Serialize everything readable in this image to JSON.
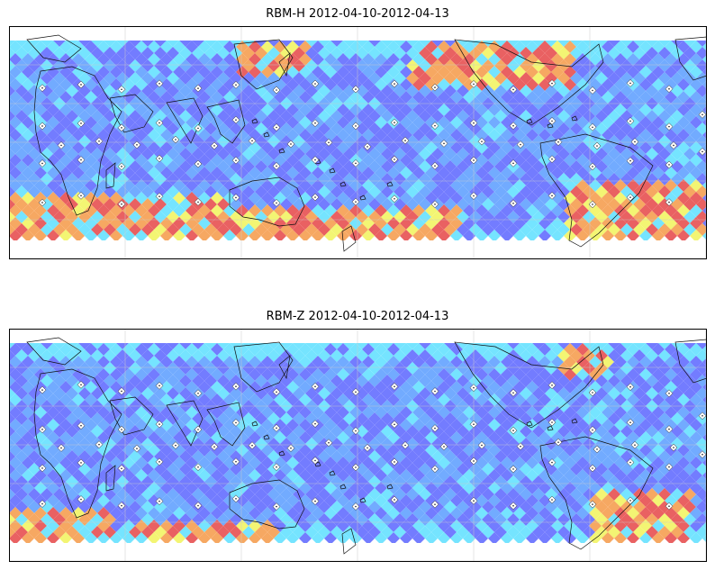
{
  "panels": [
    {
      "title": "RBM-H 2012-04-10-2012-04-13",
      "hot_zones": [
        {
          "col": 0.33,
          "row": 0.02,
          "w": 0.1,
          "h": 0.05
        },
        {
          "col": 0.57,
          "row": 0.02,
          "w": 0.24,
          "h": 0.07
        },
        {
          "col": 0.7,
          "row": 0.08,
          "w": 0.08,
          "h": 0.04
        },
        {
          "col": 0.0,
          "row": 0.78,
          "w": 0.32,
          "h": 0.17
        },
        {
          "col": 0.2,
          "row": 0.82,
          "w": 0.45,
          "h": 0.13
        },
        {
          "col": 0.8,
          "row": 0.72,
          "w": 0.2,
          "h": 0.23
        }
      ]
    },
    {
      "title": "RBM-Z 2012-04-10-2012-04-13",
      "hot_zones": [
        {
          "col": 0.79,
          "row": 0.02,
          "w": 0.07,
          "h": 0.05
        },
        {
          "col": 0.0,
          "row": 0.85,
          "w": 0.15,
          "h": 0.1
        },
        {
          "col": 0.18,
          "row": 0.89,
          "w": 0.2,
          "h": 0.06
        },
        {
          "col": 0.84,
          "row": 0.74,
          "w": 0.14,
          "h": 0.16
        }
      ]
    }
  ],
  "colors": {
    "low": "#6b75ff",
    "mid_low": "#6aa6ff",
    "cyan": "#6ee3ff",
    "yellow": "#f2f46c",
    "orange": "#f6a35a",
    "red": "#e8585a",
    "coast": "#111111",
    "grid": "#c9c9c9",
    "marker": "#ffffff"
  }
}
